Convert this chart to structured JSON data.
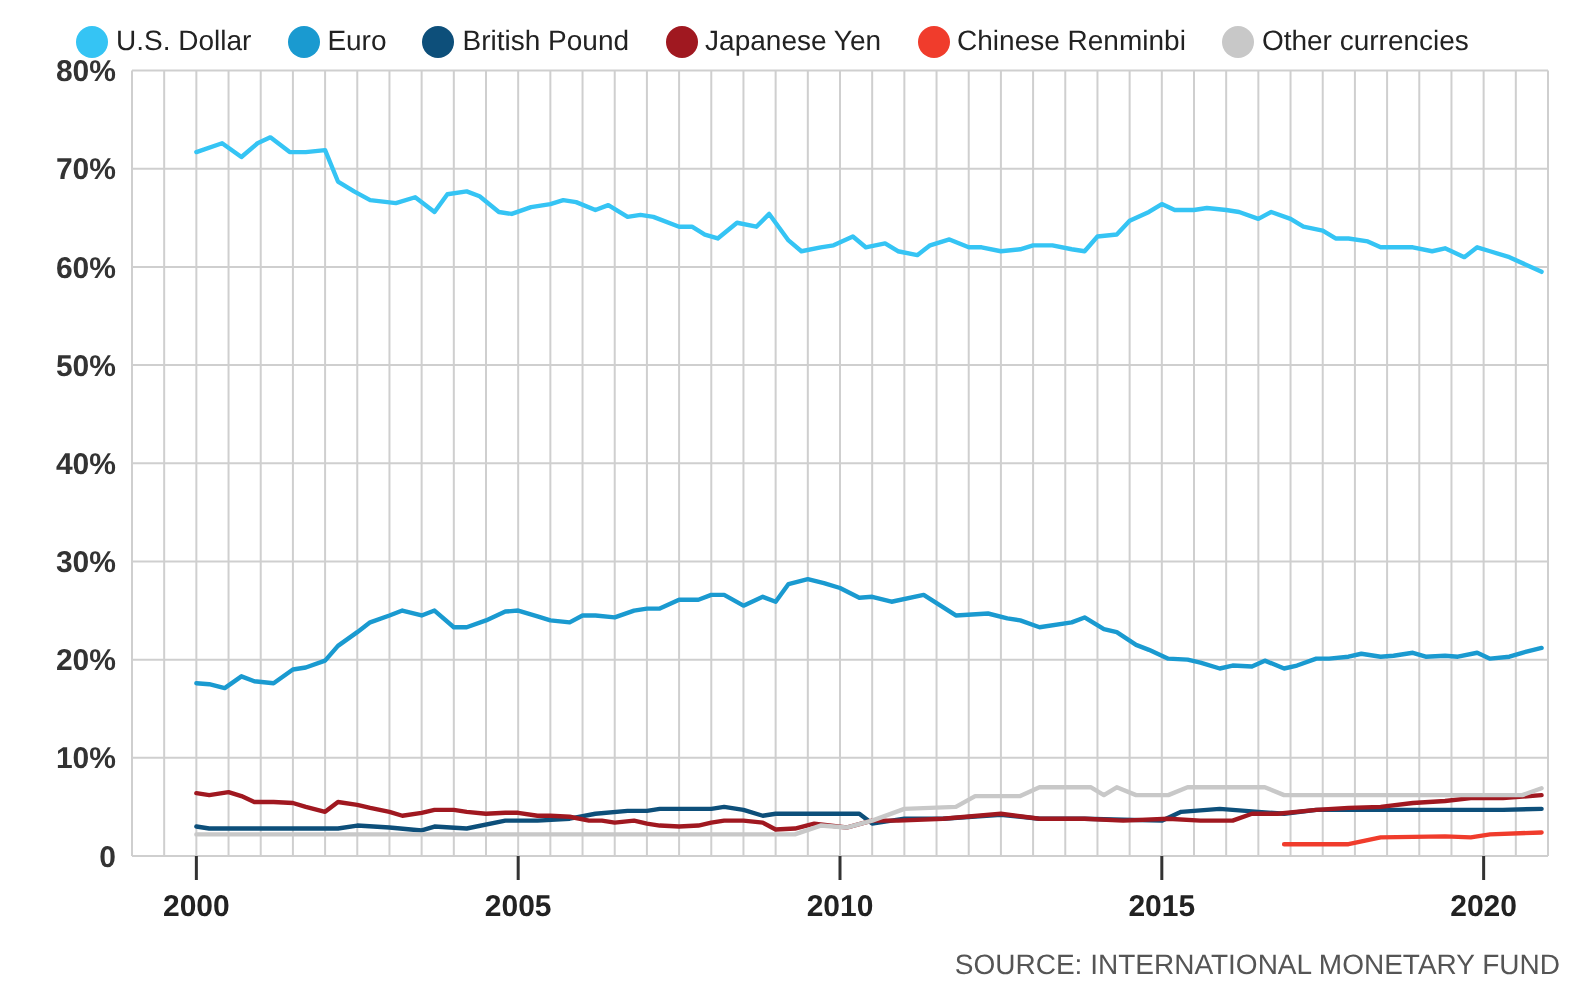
{
  "chart_data": {
    "type": "line",
    "legend": "top",
    "grid": true,
    "marker": "none",
    "line_style": "solid",
    "xlim": [
      1999,
      2021
    ],
    "xticks": [
      {
        "value": 1999.5,
        "label": null
      },
      2000,
      {
        "value": 2000.5,
        "label": null
      },
      {
        "value": 2001,
        "label": null
      },
      {
        "value": 2001.5,
        "label": null
      },
      {
        "value": 2002,
        "label": null
      },
      {
        "value": 2002.5,
        "label": null
      },
      {
        "value": 2003,
        "label": null
      },
      {
        "value": 2003.5,
        "label": null
      },
      {
        "value": 2004,
        "label": null
      },
      {
        "value": 2004.5,
        "label": null
      },
      2005,
      {
        "value": 2005.5,
        "label": null
      },
      {
        "value": 2006,
        "label": null
      },
      {
        "value": 2006.5,
        "label": null
      },
      {
        "value": 2007,
        "label": null
      },
      {
        "value": 2007.5,
        "label": null
      },
      {
        "value": 2008,
        "label": null
      },
      {
        "value": 2008.5,
        "label": null
      },
      {
        "value": 2009,
        "label": null
      },
      {
        "value": 2009.5,
        "label": null
      },
      2010,
      {
        "value": 2010.5,
        "label": null
      },
      {
        "value": 2011,
        "label": null
      },
      {
        "value": 2011.5,
        "label": null
      },
      {
        "value": 2012,
        "label": null
      },
      {
        "value": 2012.5,
        "label": null
      },
      {
        "value": 2013,
        "label": null
      },
      {
        "value": 2013.5,
        "label": null
      },
      {
        "value": 2014,
        "label": null
      },
      {
        "value": 2014.5,
        "label": null
      },
      2015,
      {
        "value": 2015.5,
        "label": null
      },
      {
        "value": 2016,
        "label": null
      },
      {
        "value": 2016.5,
        "label": null
      },
      {
        "value": 2017,
        "label": null
      },
      {
        "value": 2017.5,
        "label": null
      },
      {
        "value": 2018,
        "label": null
      },
      {
        "value": 2018.5,
        "label": null
      },
      {
        "value": 2019,
        "label": null
      },
      {
        "value": 2019.5,
        "label": null
      },
      2020,
      {
        "value": 2020.5,
        "label": null
      }
    ],
    "ylim": [
      0,
      80
    ],
    "yticks": [
      0,
      {
        "value": 10,
        "label": "10%"
      },
      {
        "value": 20,
        "label": "20%"
      },
      {
        "value": 30,
        "label": "30%"
      },
      {
        "value": 40,
        "label": "40%"
      },
      {
        "value": 50,
        "label": "50%"
      },
      {
        "value": 60,
        "label": "60%"
      },
      {
        "value": 70,
        "label": "70%"
      },
      {
        "value": 80,
        "label": "80%"
      }
    ],
    "annotations": [
      "SOURCE: INTERNATIONAL MONETARY FUND"
    ],
    "series": [
      {
        "name": "U.S. Dollar",
        "color": "#35c4f4",
        "x": [
          2000.0,
          2000.4,
          2000.7,
          2000.95,
          2001.15,
          2001.45,
          2001.7,
          2002.0,
          2002.2,
          2002.45,
          2002.7,
          2003.1,
          2003.4,
          2003.7,
          2003.9,
          2004.2,
          2004.4,
          2004.7,
          2004.9,
          2005.2,
          2005.5,
          2005.7,
          2005.9,
          2006.2,
          2006.4,
          2006.7,
          2006.9,
          2007.1,
          2007.5,
          2007.7,
          2007.9,
          2008.1,
          2008.4,
          2008.7,
          2008.9,
          2009.2,
          2009.4,
          2009.7,
          2009.9,
          2010.2,
          2010.4,
          2010.7,
          2010.9,
          2011.2,
          2011.4,
          2011.7,
          2012.0,
          2012.2,
          2012.5,
          2012.8,
          2013.0,
          2013.3,
          2013.6,
          2013.8,
          2014.0,
          2014.3,
          2014.5,
          2014.8,
          2015.0,
          2015.2,
          2015.5,
          2015.7,
          2016.0,
          2016.2,
          2016.5,
          2016.7,
          2017.0,
          2017.2,
          2017.5,
          2017.7,
          2017.9,
          2018.2,
          2018.4,
          2018.7,
          2018.9,
          2019.2,
          2019.4,
          2019.7,
          2019.9,
          2020.1,
          2020.4,
          2020.9
        ],
        "values": [
          71.7,
          72.6,
          71.2,
          72.6,
          73.2,
          71.7,
          71.7,
          71.9,
          68.7,
          67.7,
          66.8,
          66.5,
          67.1,
          65.6,
          67.4,
          67.7,
          67.2,
          65.6,
          65.4,
          66.1,
          66.4,
          66.8,
          66.6,
          65.8,
          66.3,
          65.1,
          65.3,
          65.1,
          64.1,
          64.1,
          63.3,
          62.9,
          64.5,
          64.1,
          65.4,
          62.7,
          61.6,
          62.0,
          62.2,
          63.1,
          62.0,
          62.4,
          61.6,
          61.2,
          62.2,
          62.8,
          62.0,
          62.0,
          61.6,
          61.8,
          62.2,
          62.2,
          61.8,
          61.6,
          63.1,
          63.3,
          64.7,
          65.6,
          66.4,
          65.8,
          65.8,
          66.0,
          65.8,
          65.6,
          64.9,
          65.6,
          64.9,
          64.1,
          63.7,
          62.9,
          62.9,
          62.6,
          62.0,
          62.0,
          62.0,
          61.6,
          61.9,
          61.0,
          62.0,
          61.6,
          61.0,
          59.5
        ]
      },
      {
        "name": "Euro",
        "color": "#1a9ad0",
        "x": [
          2000.0,
          2000.2,
          2000.44,
          2000.7,
          2000.9,
          2001.2,
          2001.5,
          2001.7,
          2002.0,
          2002.2,
          2002.5,
          2002.7,
          2003.0,
          2003.2,
          2003.5,
          2003.7,
          2004.0,
          2004.2,
          2004.5,
          2004.8,
          2005.0,
          2005.3,
          2005.5,
          2005.8,
          2006.0,
          2006.2,
          2006.5,
          2006.8,
          2007.0,
          2007.2,
          2007.5,
          2007.8,
          2008.0,
          2008.2,
          2008.5,
          2008.8,
          2009.0,
          2009.2,
          2009.5,
          2009.75,
          2010.0,
          2010.3,
          2010.5,
          2010.8,
          2011.3,
          2011.8,
          2012.3,
          2012.6,
          2012.8,
          2013.1,
          2013.6,
          2013.8,
          2014.1,
          2014.3,
          2014.6,
          2014.8,
          2015.1,
          2015.4,
          2015.6,
          2015.9,
          2016.1,
          2016.4,
          2016.6,
          2016.9,
          2017.1,
          2017.4,
          2017.6,
          2017.9,
          2018.1,
          2018.4,
          2018.6,
          2018.9,
          2019.1,
          2019.4,
          2019.6,
          2019.9,
          2020.1,
          2020.4,
          2020.6,
          2020.9
        ],
        "values": [
          17.6,
          17.5,
          17.1,
          18.3,
          17.8,
          17.6,
          19.0,
          19.2,
          19.9,
          21.4,
          22.8,
          23.8,
          24.5,
          25.0,
          24.5,
          25.0,
          23.3,
          23.3,
          24.0,
          24.9,
          25.0,
          24.4,
          24.0,
          23.8,
          24.5,
          24.5,
          24.3,
          25.0,
          25.2,
          25.2,
          26.1,
          26.1,
          26.6,
          26.6,
          25.5,
          26.4,
          25.9,
          27.7,
          28.2,
          27.8,
          27.3,
          26.3,
          26.4,
          25.9,
          26.6,
          24.5,
          24.7,
          24.2,
          24.0,
          23.3,
          23.8,
          24.3,
          23.1,
          22.8,
          21.5,
          21.0,
          20.1,
          20.0,
          19.7,
          19.1,
          19.4,
          19.3,
          19.9,
          19.1,
          19.4,
          20.1,
          20.1,
          20.3,
          20.6,
          20.3,
          20.4,
          20.7,
          20.3,
          20.4,
          20.3,
          20.7,
          20.1,
          20.3,
          20.7,
          21.2
        ]
      },
      {
        "name": "British Pound",
        "color": "#0d4f7a",
        "x": [
          2000.0,
          2000.2,
          2000.9,
          2002.2,
          2002.5,
          2003.0,
          2003.5,
          2003.7,
          2004.2,
          2004.8,
          2005.3,
          2005.8,
          2006.2,
          2006.7,
          2007.0,
          2007.2,
          2008.0,
          2008.2,
          2008.5,
          2008.8,
          2009.0,
          2009.5,
          2009.7,
          2010.3,
          2010.5,
          2011.0,
          2011.6,
          2012.5,
          2013.1,
          2013.8,
          2015.0,
          2015.3,
          2015.9,
          2016.5,
          2016.9,
          2017.4,
          2018.4,
          2019.4,
          2020.3,
          2020.9
        ],
        "values": [
          3.0,
          2.8,
          2.8,
          2.8,
          3.1,
          2.9,
          2.6,
          3.0,
          2.8,
          3.6,
          3.6,
          3.8,
          4.3,
          4.6,
          4.6,
          4.8,
          4.8,
          5.0,
          4.7,
          4.1,
          4.3,
          4.3,
          4.3,
          4.3,
          3.3,
          3.8,
          3.8,
          4.2,
          3.8,
          3.8,
          3.6,
          4.5,
          4.8,
          4.5,
          4.3,
          4.7,
          4.7,
          4.7,
          4.7,
          4.8
        ]
      },
      {
        "name": "Japanese Yen",
        "color": "#a01820",
        "x": [
          2000.0,
          2000.2,
          2000.5,
          2000.7,
          2000.9,
          2001.2,
          2001.5,
          2001.7,
          2002.0,
          2002.2,
          2002.5,
          2002.7,
          2003.0,
          2003.2,
          2003.5,
          2003.7,
          2004.0,
          2004.2,
          2004.5,
          2004.8,
          2005.0,
          2005.3,
          2005.5,
          2005.8,
          2006.1,
          2006.3,
          2006.5,
          2006.8,
          2007.0,
          2007.2,
          2007.5,
          2007.8,
          2008.0,
          2008.2,
          2008.5,
          2008.8,
          2009.0,
          2009.3,
          2009.6,
          2010.1,
          2010.5,
          2010.9,
          2011.6,
          2012.5,
          2013.1,
          2013.8,
          2014.4,
          2015.1,
          2015.6,
          2016.1,
          2016.4,
          2016.8,
          2017.4,
          2017.9,
          2018.4,
          2018.9,
          2019.4,
          2019.8,
          2020.3,
          2020.9
        ],
        "values": [
          6.4,
          6.2,
          6.5,
          6.1,
          5.5,
          5.5,
          5.4,
          5.0,
          4.5,
          5.5,
          5.2,
          4.9,
          4.5,
          4.1,
          4.4,
          4.7,
          4.7,
          4.5,
          4.3,
          4.4,
          4.4,
          4.1,
          4.1,
          4.0,
          3.6,
          3.6,
          3.4,
          3.6,
          3.3,
          3.1,
          3.0,
          3.1,
          3.4,
          3.6,
          3.6,
          3.4,
          2.7,
          2.8,
          3.3,
          2.9,
          3.6,
          3.6,
          3.8,
          4.3,
          3.8,
          3.8,
          3.6,
          3.8,
          3.6,
          3.6,
          4.3,
          4.3,
          4.7,
          4.9,
          5.0,
          5.4,
          5.6,
          5.9,
          5.9,
          6.2
        ]
      },
      {
        "name": "Chinese Renminbi",
        "color": "#f03c2c",
        "x": [
          2016.9,
          2017.9,
          2018.4,
          2019.4,
          2019.8,
          2020.1,
          2020.9
        ],
        "values": [
          1.2,
          1.2,
          1.9,
          2.0,
          1.9,
          2.2,
          2.4
        ]
      },
      {
        "name": "Other currencies",
        "color": "#c8c8c8",
        "x": [
          2000.0,
          2009.3,
          2009.7,
          2010.1,
          2010.5,
          2011.0,
          2011.8,
          2012.1,
          2012.8,
          2013.1,
          2013.9,
          2014.1,
          2014.3,
          2014.6,
          2015.1,
          2015.4,
          2016.6,
          2016.9,
          2020.6,
          2020.9
        ],
        "values": [
          2.2,
          2.2,
          3.1,
          2.9,
          3.6,
          4.8,
          5.0,
          6.1,
          6.1,
          7.0,
          7.0,
          6.2,
          7.0,
          6.2,
          6.2,
          7.0,
          7.0,
          6.2,
          6.2,
          6.9
        ]
      }
    ]
  }
}
